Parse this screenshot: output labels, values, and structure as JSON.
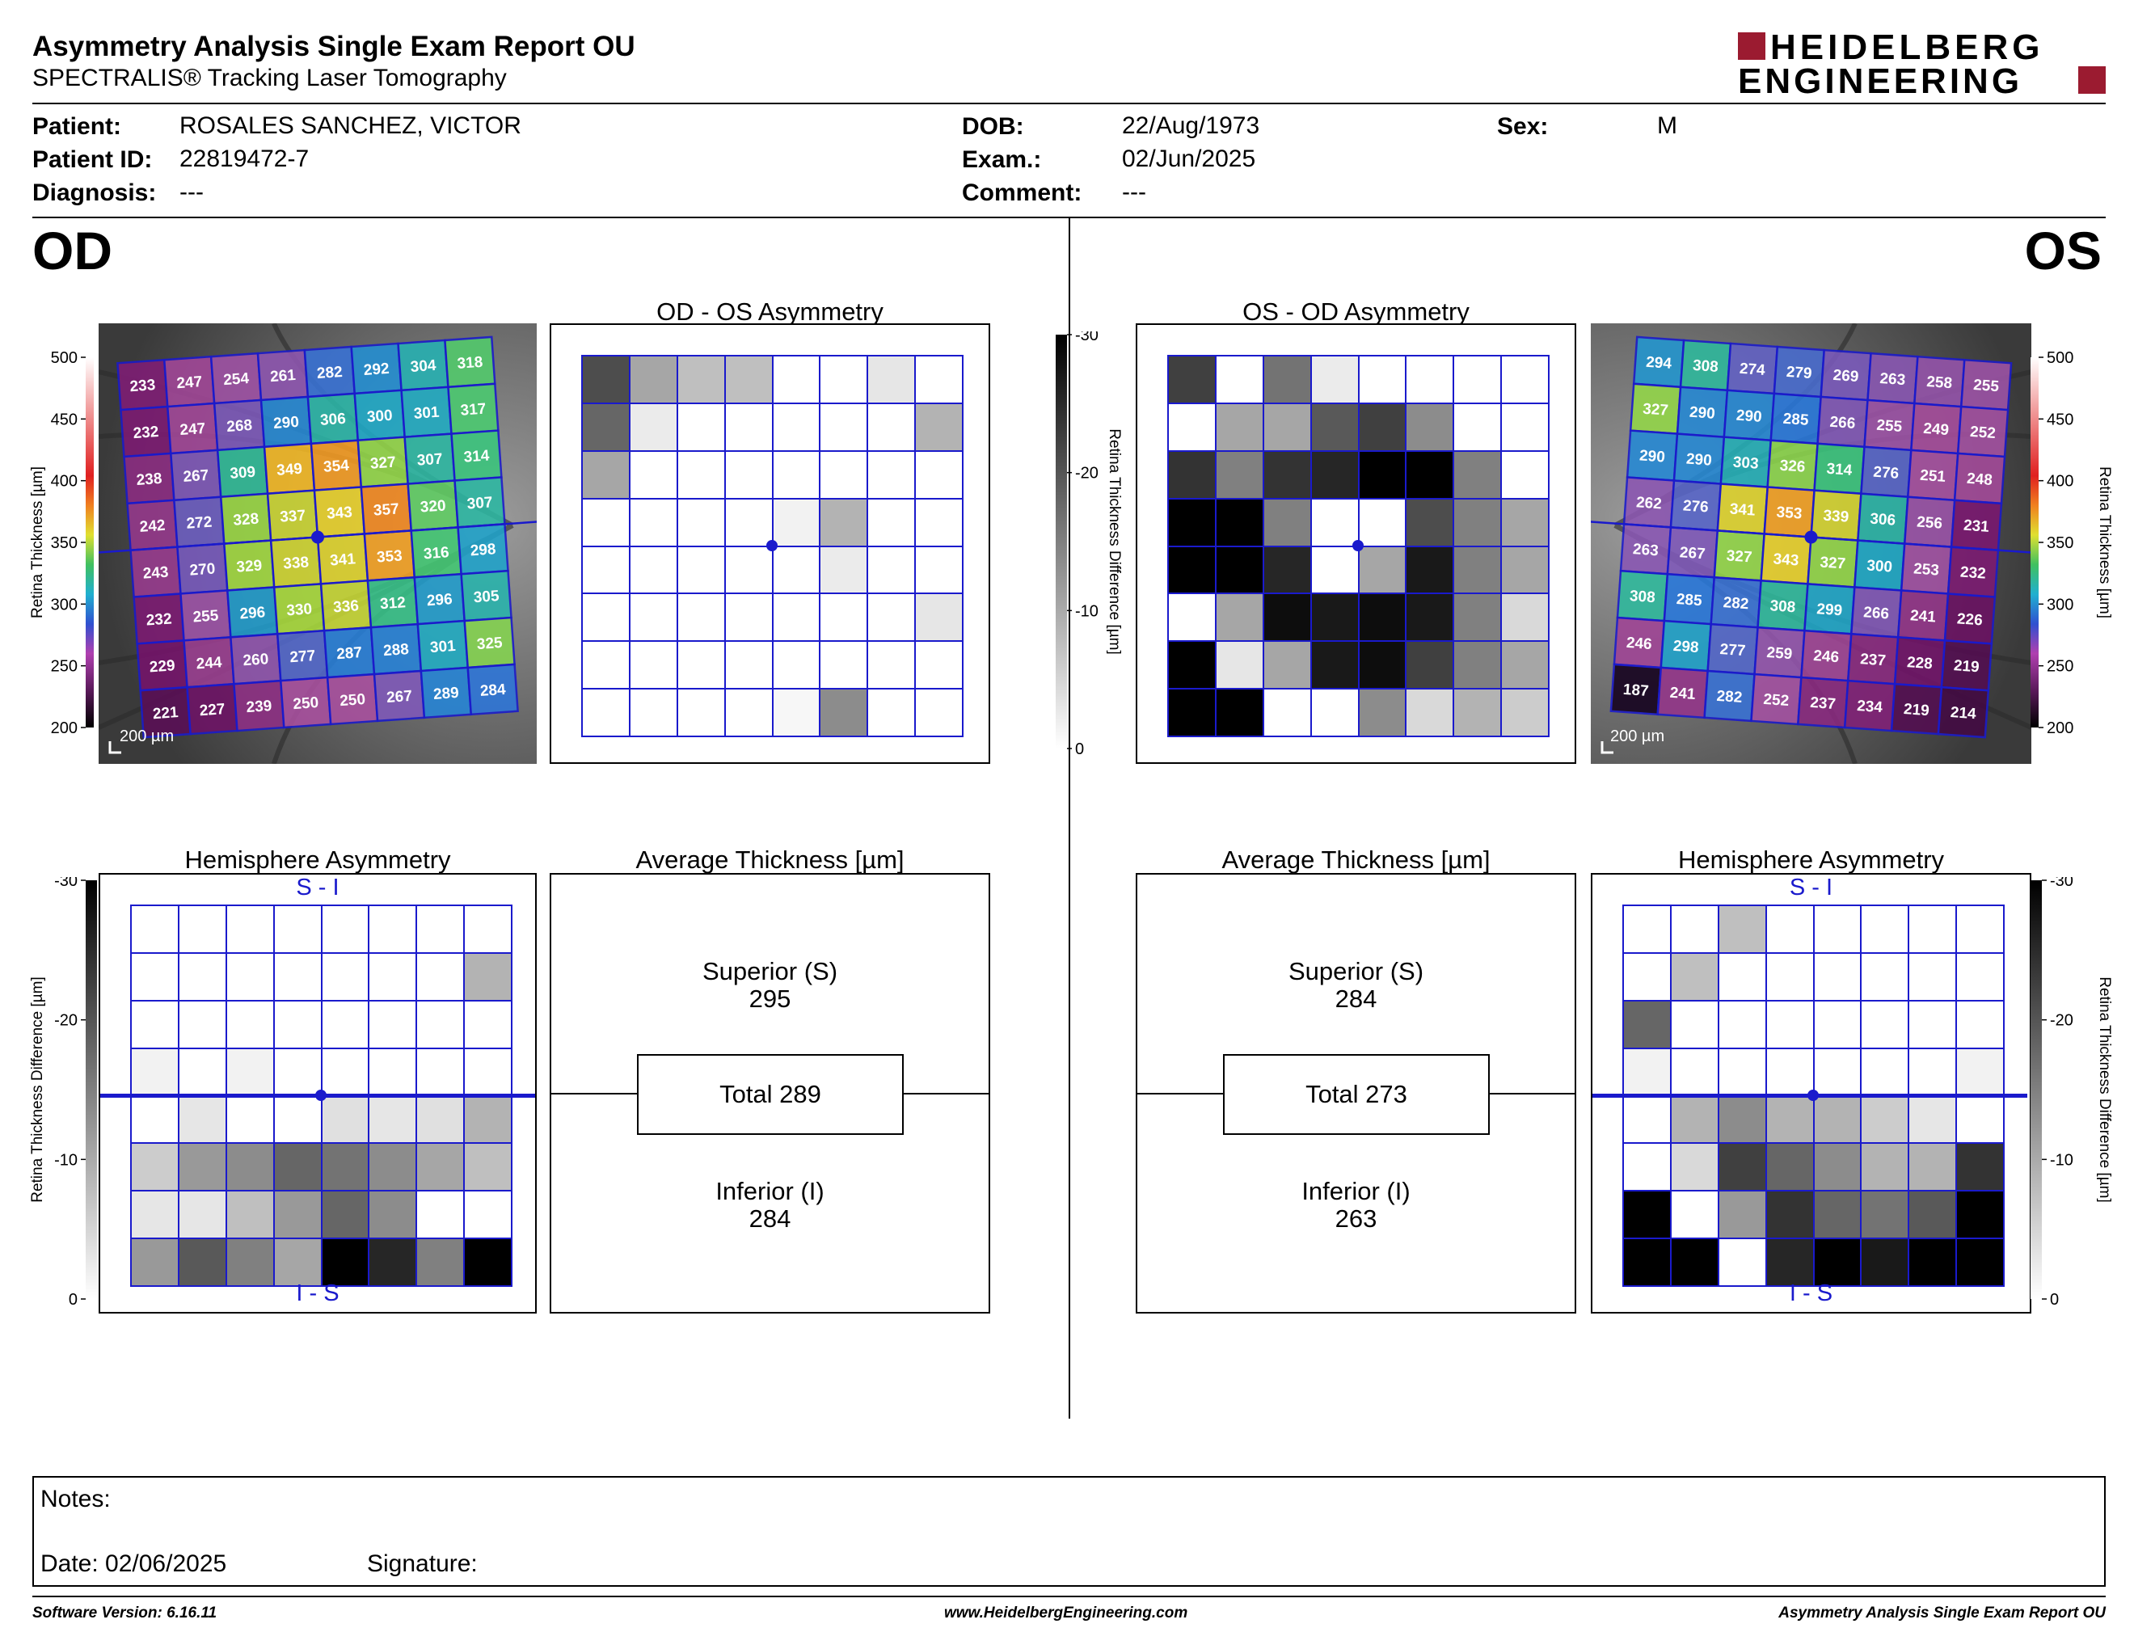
{
  "header": {
    "title": "Asymmetry Analysis Single Exam Report OU",
    "subtitle": "SPECTRALIS® Tracking Laser Tomography",
    "logo_line1": "HEIDELBERG",
    "logo_line2": "ENGINEERING",
    "logo_color": "#9b1b30"
  },
  "patient": {
    "patient_label": "Patient:",
    "patient_value": "ROSALES SANCHEZ, VICTOR",
    "id_label": "Patient ID:",
    "id_value": "22819472-7",
    "diagnosis_label": "Diagnosis:",
    "diagnosis_value": "---",
    "dob_label": "DOB:",
    "dob_value": "22/Aug/1973",
    "exam_label": "Exam.:",
    "exam_value": "02/Jun/2025",
    "comment_label": "Comment:",
    "comment_value": "---",
    "sex_label": "Sex:",
    "sex_value": "M"
  },
  "od": {
    "eye_label": "OD",
    "asym_title": "OD - OS Asymmetry",
    "hemi_title": "Hemisphere Asymmetry",
    "avg_title": "Average Thickness [µm]",
    "superior_label": "Superior (S)",
    "superior_value": "295",
    "total_label": "Total 289",
    "inferior_label": "Inferior (I)",
    "inferior_value": "284",
    "hemi_top": "S - I",
    "hemi_bottom": "I - S",
    "scale_label": "200 µm",
    "thickness_values": [
      [
        233,
        247,
        254,
        261,
        282,
        292,
        304,
        318
      ],
      [
        232,
        247,
        268,
        290,
        306,
        300,
        301,
        317
      ],
      [
        238,
        267,
        309,
        349,
        354,
        327,
        307,
        314
      ],
      [
        242,
        272,
        328,
        337,
        343,
        357,
        320,
        307
      ],
      [
        243,
        270,
        329,
        338,
        341,
        353,
        316,
        298
      ],
      [
        232,
        255,
        296,
        330,
        336,
        312,
        296,
        305
      ],
      [
        229,
        244,
        260,
        277,
        287,
        288,
        301,
        325
      ],
      [
        221,
        227,
        239,
        250,
        250,
        267,
        289,
        284
      ]
    ],
    "asym_grays": [
      [
        0.7,
        0.35,
        0.25,
        0.25,
        0,
        0,
        0.1,
        0
      ],
      [
        0.6,
        0.08,
        0,
        0,
        0,
        0,
        0,
        0.3
      ],
      [
        0.35,
        0,
        0,
        0,
        0,
        0,
        0,
        0
      ],
      [
        0,
        0,
        0,
        0,
        0.05,
        0.3,
        0,
        0
      ],
      [
        0,
        0,
        0,
        0,
        0,
        0.08,
        0,
        0
      ],
      [
        0,
        0,
        0,
        0,
        0,
        0,
        0,
        0.1
      ],
      [
        0,
        0,
        0,
        0,
        0,
        0,
        0,
        0
      ],
      [
        0,
        0,
        0,
        0,
        0.03,
        0.45,
        0,
        0
      ]
    ],
    "hemi_grays": [
      [
        0,
        0,
        0,
        0,
        0,
        0,
        0,
        0
      ],
      [
        0,
        0,
        0,
        0,
        0,
        0,
        0,
        0.3
      ],
      [
        0,
        0,
        0,
        0,
        0,
        0,
        0,
        0
      ],
      [
        0.05,
        0,
        0.05,
        0,
        0,
        0,
        0,
        0
      ],
      [
        0,
        0.1,
        0,
        0,
        0.12,
        0.1,
        0.12,
        0.3
      ],
      [
        0.2,
        0.4,
        0.45,
        0.6,
        0.55,
        0.45,
        0.35,
        0.25
      ],
      [
        0.1,
        0.1,
        0.25,
        0.4,
        0.6,
        0.45,
        0,
        0
      ],
      [
        0.4,
        0.65,
        0.5,
        0.35,
        1,
        0.85,
        0.5,
        1
      ]
    ]
  },
  "os": {
    "eye_label": "OS",
    "asym_title": "OS - OD Asymmetry",
    "hemi_title": "Hemisphere Asymmetry",
    "avg_title": "Average Thickness [µm]",
    "superior_label": "Superior (S)",
    "superior_value": "284",
    "total_label": "Total 273",
    "inferior_label": "Inferior (I)",
    "inferior_value": "263",
    "hemi_top": "S - I",
    "hemi_bottom": "I - S",
    "scale_label": "200 µm",
    "thickness_values": [
      [
        294,
        308,
        274,
        279,
        269,
        263,
        258,
        255
      ],
      [
        327,
        290,
        290,
        285,
        266,
        255,
        249,
        252
      ],
      [
        290,
        290,
        303,
        326,
        314,
        276,
        251,
        248
      ],
      [
        262,
        276,
        341,
        353,
        339,
        306,
        256,
        231
      ],
      [
        263,
        267,
        327,
        343,
        327,
        300,
        253,
        232
      ],
      [
        308,
        285,
        282,
        308,
        299,
        266,
        241,
        226
      ],
      [
        246,
        298,
        277,
        259,
        246,
        237,
        228,
        219
      ],
      [
        187,
        241,
        282,
        252,
        237,
        234,
        219,
        214
      ]
    ],
    "asym_grays": [
      [
        0.75,
        0,
        0.55,
        0.08,
        0,
        0,
        0,
        0
      ],
      [
        0,
        0.35,
        0.35,
        0.65,
        0.75,
        0.45,
        0,
        0
      ],
      [
        0.8,
        0.5,
        0.8,
        0.85,
        1,
        1,
        0.5,
        0
      ],
      [
        1,
        1,
        0.5,
        0,
        0,
        0.7,
        0.5,
        0.35
      ],
      [
        1,
        1,
        0.85,
        0,
        0.35,
        0.9,
        0.5,
        0.35
      ],
      [
        0,
        0.35,
        0.95,
        0.9,
        0.95,
        0.9,
        0.5,
        0.15
      ],
      [
        1,
        0.1,
        0.35,
        0.9,
        0.95,
        0.75,
        0.5,
        0.35
      ],
      [
        1,
        1,
        0,
        0,
        0.45,
        0.15,
        0.3,
        0.2
      ]
    ],
    "hemi_grays": [
      [
        0,
        0,
        0.25,
        0,
        0,
        0,
        0,
        0
      ],
      [
        0,
        0.25,
        0,
        0,
        0,
        0,
        0,
        0
      ],
      [
        0.6,
        0,
        0,
        0,
        0,
        0,
        0,
        0
      ],
      [
        0.05,
        0,
        0,
        0,
        0,
        0,
        0,
        0.05
      ],
      [
        0,
        0.3,
        0.45,
        0.3,
        0.3,
        0.2,
        0.1,
        0
      ],
      [
        0,
        0.15,
        0.75,
        0.6,
        0.45,
        0.3,
        0.3,
        0.8
      ],
      [
        1,
        0,
        0.4,
        0.8,
        0.6,
        0.55,
        0.65,
        1
      ],
      [
        1,
        1,
        0,
        0.85,
        1,
        0.9,
        1,
        1
      ]
    ]
  },
  "scales": {
    "thickness_label": "Retina Thickness [µm]",
    "thickness_ticks": [
      "500",
      "450",
      "400",
      "350",
      "300",
      "250",
      "200"
    ],
    "diff_label": "Retina Thickness Difference [µm]",
    "diff_ticks": [
      "-30",
      "-20",
      "-10",
      "0"
    ]
  },
  "notes": {
    "notes_label": "Notes:",
    "date_label": "Date: 02/06/2025",
    "signature_label": "Signature:"
  },
  "footer": {
    "software": "Software Version: 6.16.11",
    "website": "www.HeidelbergEngineering.com",
    "report_name": "Asymmetry Analysis Single Exam Report OU"
  }
}
